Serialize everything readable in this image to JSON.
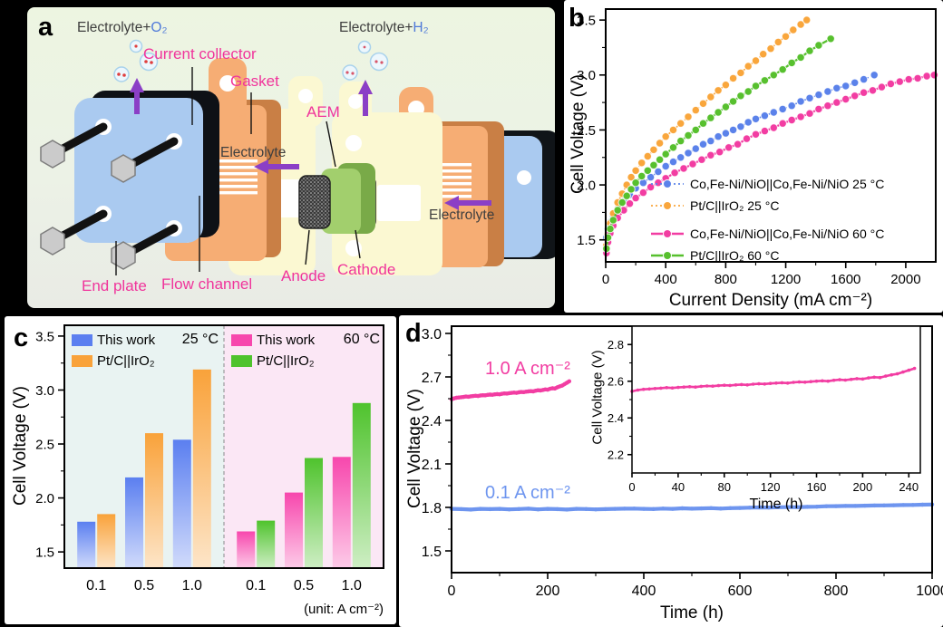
{
  "figure": {
    "background": "#000000"
  },
  "panel_a": {
    "letter": "a",
    "labels": {
      "gas_left_prefix": "Electrolyte+",
      "gas_left": "O₂",
      "gas_right_prefix": "Electrolyte+",
      "gas_right": "H₂",
      "current_collector": "Current collector",
      "gasket": "Gasket",
      "aem": "AEM",
      "electrolyte_left": "Electrolyte",
      "electrolyte_right": "Electrolyte",
      "flow_channel": "Flow channel",
      "end_plate": "End plate",
      "anode": "Anode",
      "cathode": "Cathode"
    },
    "colors": {
      "component_label": "#f0349b",
      "gas_text": "#3f3f3f",
      "gas_molecule": "#4f79d9",
      "arrow": "#8b3fc6",
      "end_plate": "#aacaf0",
      "current_collector": "#f6ad74",
      "gasket": "#fbf8d2",
      "aem": "#a2cf6d",
      "electrode": "#3a3a3a"
    }
  },
  "panel_b": {
    "letter": "b"
  },
  "panel_c": {
    "letter": "c"
  },
  "panel_d": {
    "letter": "d"
  },
  "chart_data": [
    {
      "id": "b",
      "type": "line",
      "xlabel": "Current Density (mA cm⁻²)",
      "ylabel": "Cell Voltage (V)",
      "xlim": [
        0,
        2200
      ],
      "ylim": [
        1.3,
        3.6
      ],
      "xticks": [
        0,
        400,
        800,
        1200,
        1600,
        2000
      ],
      "yticks": [
        "1.5",
        "2.0",
        "2.5",
        "3.0",
        "3.5"
      ],
      "grid": false,
      "legend_position": "inside bottom-right",
      "series": [
        {
          "name": "Co,Fe-Ni/NiO||Co,Fe-Ni/NiO 25 °C",
          "color": "#5b82ea",
          "line": "dotted",
          "x": [
            5,
            15,
            30,
            50,
            80,
            120,
            160,
            200,
            250,
            300,
            350,
            400,
            450,
            500,
            550,
            600,
            650,
            700,
            750,
            800,
            850,
            900,
            950,
            1000,
            1060,
            1120,
            1180,
            1240,
            1300,
            1360,
            1420,
            1480,
            1540,
            1600,
            1660,
            1720,
            1790
          ],
          "y": [
            1.52,
            1.6,
            1.66,
            1.72,
            1.78,
            1.85,
            1.91,
            1.97,
            2.02,
            2.07,
            2.12,
            2.17,
            2.21,
            2.25,
            2.29,
            2.33,
            2.37,
            2.4,
            2.44,
            2.47,
            2.5,
            2.53,
            2.57,
            2.6,
            2.63,
            2.66,
            2.69,
            2.72,
            2.76,
            2.79,
            2.82,
            2.85,
            2.88,
            2.9,
            2.93,
            2.96,
            3.0
          ]
        },
        {
          "name": "Pt/C||IrO₂ 25 °C",
          "color": "#f9a63c",
          "line": "dotted",
          "x": [
            5,
            15,
            30,
            50,
            80,
            110,
            140,
            170,
            200,
            240,
            280,
            320,
            360,
            400,
            450,
            500,
            550,
            600,
            650,
            700,
            750,
            800,
            850,
            900,
            950,
            1000,
            1050,
            1100,
            1150,
            1200,
            1250,
            1300,
            1340
          ],
          "y": [
            1.45,
            1.55,
            1.65,
            1.74,
            1.84,
            1.92,
            2.0,
            2.07,
            2.13,
            2.2,
            2.26,
            2.32,
            2.38,
            2.44,
            2.5,
            2.56,
            2.62,
            2.68,
            2.74,
            2.8,
            2.86,
            2.91,
            2.97,
            3.02,
            3.08,
            3.13,
            3.19,
            3.24,
            3.3,
            3.35,
            3.41,
            3.46,
            3.5
          ]
        },
        {
          "name": "Co,Fe-Ni/NiO||Co,Fe-Ni/NiO 60 °C",
          "color": "#f23da2",
          "line": "solid",
          "x": [
            5,
            15,
            30,
            50,
            80,
            120,
            160,
            200,
            250,
            300,
            350,
            400,
            460,
            520,
            580,
            640,
            700,
            760,
            820,
            880,
            940,
            1000,
            1060,
            1120,
            1180,
            1240,
            1300,
            1360,
            1420,
            1480,
            1540,
            1600,
            1660,
            1720,
            1780,
            1840,
            1900,
            1960,
            2020,
            2080,
            2140,
            2190
          ],
          "y": [
            1.38,
            1.48,
            1.56,
            1.63,
            1.7,
            1.77,
            1.83,
            1.88,
            1.93,
            1.98,
            2.02,
            2.06,
            2.11,
            2.15,
            2.19,
            2.23,
            2.27,
            2.3,
            2.34,
            2.37,
            2.42,
            2.46,
            2.49,
            2.52,
            2.56,
            2.59,
            2.62,
            2.65,
            2.69,
            2.72,
            2.75,
            2.78,
            2.81,
            2.84,
            2.86,
            2.89,
            2.92,
            2.94,
            2.96,
            2.97,
            2.99,
            3.0
          ]
        },
        {
          "name": "Pt/C||IrO₂ 60 °C",
          "color": "#57c02e",
          "line": "solid",
          "x": [
            5,
            15,
            30,
            50,
            80,
            110,
            140,
            170,
            200,
            240,
            280,
            320,
            360,
            400,
            450,
            500,
            550,
            600,
            650,
            700,
            750,
            800,
            850,
            900,
            950,
            1000,
            1060,
            1120,
            1180,
            1240,
            1300,
            1360,
            1420,
            1500
          ],
          "y": [
            1.42,
            1.52,
            1.6,
            1.68,
            1.77,
            1.84,
            1.9,
            1.96,
            2.02,
            2.08,
            2.13,
            2.18,
            2.23,
            2.28,
            2.34,
            2.4,
            2.45,
            2.5,
            2.56,
            2.61,
            2.66,
            2.71,
            2.76,
            2.81,
            2.85,
            2.9,
            2.95,
            3.0,
            3.05,
            3.11,
            3.16,
            3.22,
            3.27,
            3.33
          ]
        }
      ]
    },
    {
      "id": "c",
      "type": "bar",
      "ylabel": "Cell Voltage (V)",
      "categories": [
        "0.1",
        "0.5",
        "1.0"
      ],
      "unit_note": "(unit: A cm⁻²)",
      "ylim": [
        1.35,
        3.6
      ],
      "yticks": [
        "1.5",
        "2.0",
        "2.5",
        "3.0",
        "3.5"
      ],
      "groups": [
        {
          "temp": "25 °C",
          "bg": "#e9f3f2",
          "series": [
            {
              "name": "This work",
              "color": "#5b7ff0",
              "values": [
                1.78,
                2.19,
                2.54
              ]
            },
            {
              "name": "Pt/C||IrO₂",
              "color": "#f9a23a",
              "values": [
                1.85,
                2.6,
                3.19
              ]
            }
          ]
        },
        {
          "temp": "60 °C",
          "bg": "#fbe7f5",
          "series": [
            {
              "name": "This work",
              "color": "#f747ad",
              "values": [
                1.69,
                2.05,
                2.38
              ]
            },
            {
              "name": "Pt/C||IrO₂",
              "color": "#4fc32d",
              "values": [
                1.79,
                2.37,
                2.88
              ]
            }
          ]
        }
      ]
    },
    {
      "id": "d",
      "type": "line",
      "xlabel": "Time (h)",
      "ylabel": "Cell Voltage (V)",
      "xlim": [
        0,
        1000
      ],
      "ylim": [
        1.35,
        3.05
      ],
      "xticks": [
        0,
        200,
        400,
        600,
        800,
        1000
      ],
      "yticks": [
        "1.5",
        "1.8",
        "2.1",
        "2.4",
        "2.7",
        "3.0"
      ],
      "annotations": [
        {
          "text": "1.0 A cm⁻²",
          "color": "#f23da2"
        },
        {
          "text": "0.1 A cm⁻²",
          "color": "#6e95ef"
        }
      ],
      "series": [
        {
          "name": "1.0 A cm⁻²",
          "color": "#f23da2",
          "line": "solid",
          "x": [
            0,
            5,
            10,
            15,
            20,
            25,
            30,
            35,
            40,
            45,
            50,
            55,
            60,
            65,
            70,
            75,
            80,
            85,
            90,
            95,
            100,
            105,
            110,
            115,
            120,
            125,
            130,
            135,
            140,
            145,
            150,
            155,
            160,
            165,
            170,
            175,
            180,
            185,
            190,
            195,
            200,
            205,
            210,
            215,
            220,
            225,
            230,
            235,
            240,
            245
          ],
          "y": [
            2.545,
            2.552,
            2.556,
            2.558,
            2.56,
            2.562,
            2.565,
            2.563,
            2.566,
            2.568,
            2.57,
            2.568,
            2.572,
            2.574,
            2.573,
            2.576,
            2.578,
            2.577,
            2.58,
            2.582,
            2.58,
            2.584,
            2.586,
            2.585,
            2.588,
            2.59,
            2.592,
            2.59,
            2.594,
            2.596,
            2.595,
            2.598,
            2.6,
            2.602,
            2.6,
            2.605,
            2.608,
            2.606,
            2.61,
            2.614,
            2.612,
            2.618,
            2.622,
            2.62,
            2.628,
            2.635,
            2.64,
            2.65,
            2.66,
            2.67
          ]
        },
        {
          "name": "0.1 A cm⁻²",
          "color": "#6e95ef",
          "line": "solid",
          "x": [
            0,
            20,
            40,
            60,
            80,
            100,
            120,
            140,
            160,
            180,
            200,
            220,
            240,
            260,
            280,
            300,
            320,
            340,
            360,
            380,
            400,
            420,
            440,
            460,
            480,
            500,
            520,
            540,
            560,
            580,
            600,
            620,
            640,
            660,
            680,
            700,
            720,
            740,
            760,
            780,
            800,
            820,
            840,
            860,
            880,
            900,
            920,
            940,
            960,
            980,
            1000
          ],
          "y": [
            1.79,
            1.788,
            1.785,
            1.79,
            1.788,
            1.79,
            1.786,
            1.789,
            1.791,
            1.786,
            1.79,
            1.788,
            1.785,
            1.79,
            1.789,
            1.786,
            1.788,
            1.79,
            1.791,
            1.792,
            1.79,
            1.789,
            1.792,
            1.79,
            1.794,
            1.791,
            1.793,
            1.795,
            1.792,
            1.795,
            1.796,
            1.798,
            1.8,
            1.799,
            1.801,
            1.802,
            1.801,
            1.804,
            1.805,
            1.808,
            1.809,
            1.81,
            1.81,
            1.812,
            1.813,
            1.814,
            1.815,
            1.816,
            1.817,
            1.819,
            1.82
          ]
        }
      ]
    },
    {
      "id": "d_inset",
      "type": "line",
      "xlabel": "Time (h)",
      "ylabel": "Cell Voltage (V)",
      "xlim": [
        0,
        250
      ],
      "ylim": [
        2.1,
        2.9
      ],
      "xticks": [
        0,
        40,
        80,
        120,
        160,
        200,
        240
      ],
      "yticks": [
        "2.2",
        "2.4",
        "2.6",
        "2.8"
      ],
      "series_from": [
        [
          2,
          0
        ]
      ]
    }
  ]
}
